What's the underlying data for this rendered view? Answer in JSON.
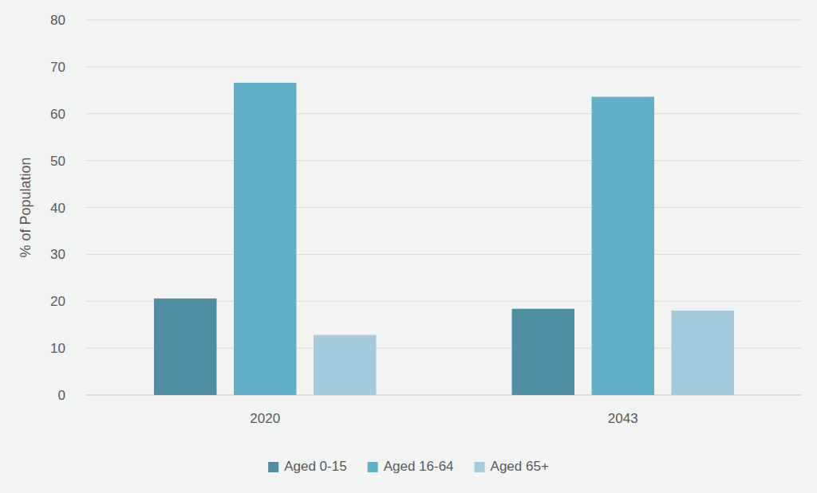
{
  "chart_data": {
    "type": "bar",
    "ylabel": "% of Population",
    "categories": [
      "2020",
      "2043"
    ],
    "series": [
      {
        "name": "Aged 0-15",
        "color": "#4e8fa3",
        "values": [
          20.6,
          18.4
        ]
      },
      {
        "name": "Aged 16-64",
        "color": "#62afc8",
        "values": [
          66.6,
          63.6
        ]
      },
      {
        "name": "Aged 65+",
        "color": "#a4cadb",
        "values": [
          12.8,
          18.0
        ]
      }
    ],
    "ylim": [
      0,
      80
    ],
    "yticks": [
      0,
      10,
      20,
      30,
      40,
      50,
      60,
      70,
      80
    ],
    "grid": true,
    "legend": "bottom"
  }
}
